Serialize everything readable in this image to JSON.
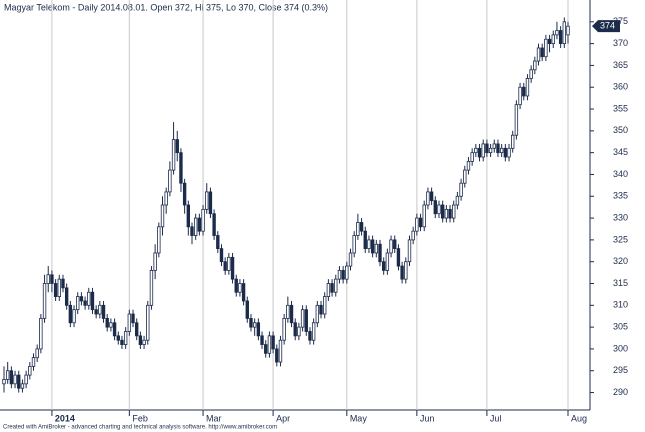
{
  "chart_data": {
    "type": "candlestick",
    "title": "Magyar Telekom - Daily 2014.08.01. Open 372, Hi 375, Lo 370, Close 374 (0.3%)",
    "footer": "Created with AmiBroker - advanced charting and technical analysis software. http://www.amibroker.com",
    "up_color": "#ffffff",
    "down_color": "#1c2b4a",
    "outline_color": "#1c2b4a",
    "ylim": [
      286,
      380
    ],
    "yticks": [
      290,
      295,
      300,
      305,
      310,
      315,
      320,
      325,
      330,
      335,
      340,
      345,
      350,
      355,
      360,
      365,
      370,
      375
    ],
    "xticks": [
      {
        "value": 13,
        "label": "2014"
      },
      {
        "value": 34,
        "label": "Feb"
      },
      {
        "value": 54,
        "label": "Mar"
      },
      {
        "value": 73,
        "label": "Apr"
      },
      {
        "value": 93,
        "label": "May"
      },
      {
        "value": 112,
        "label": "Jun"
      },
      {
        "value": 131,
        "label": "Jul"
      },
      {
        "value": 153,
        "label": "Aug"
      }
    ],
    "grid": true,
    "ohlc": [
      [
        292,
        296,
        290,
        293
      ],
      [
        293,
        297,
        292,
        295
      ],
      [
        295,
        296,
        291,
        292
      ],
      [
        292,
        295,
        291,
        294
      ],
      [
        294,
        295,
        290,
        291
      ],
      [
        291,
        293,
        290,
        292
      ],
      [
        292,
        295,
        291,
        294
      ],
      [
        294,
        297,
        293,
        296
      ],
      [
        296,
        299,
        295,
        298
      ],
      [
        298,
        301,
        297,
        300
      ],
      [
        300,
        308,
        299,
        307
      ],
      [
        307,
        317,
        306,
        315
      ],
      [
        315,
        319,
        313,
        317
      ],
      [
        317,
        318,
        313,
        315
      ],
      [
        315,
        316,
        311,
        312
      ],
      [
        312,
        317,
        311,
        316
      ],
      [
        316,
        317,
        313,
        314
      ],
      [
        314,
        315,
        309,
        310
      ],
      [
        310,
        311,
        305,
        306
      ],
      [
        306,
        310,
        305,
        309
      ],
      [
        309,
        313,
        308,
        312
      ],
      [
        312,
        313,
        310,
        311
      ],
      [
        311,
        312,
        309,
        310
      ],
      [
        310,
        314,
        309,
        313
      ],
      [
        313,
        314,
        308,
        309
      ],
      [
        309,
        310,
        307,
        308
      ],
      [
        308,
        311,
        307,
        310
      ],
      [
        310,
        311,
        306,
        307
      ],
      [
        307,
        308,
        304,
        305
      ],
      [
        305,
        307,
        304,
        306
      ],
      [
        306,
        307,
        302,
        303
      ],
      [
        303,
        304,
        301,
        302
      ],
      [
        302,
        303,
        300,
        301
      ],
      [
        301,
        305,
        300,
        304
      ],
      [
        304,
        309,
        303,
        308
      ],
      [
        308,
        309,
        305,
        306
      ],
      [
        306,
        307,
        302,
        303
      ],
      [
        303,
        304,
        300,
        301
      ],
      [
        301,
        303,
        300,
        302
      ],
      [
        302,
        311,
        301,
        310
      ],
      [
        310,
        319,
        309,
        318
      ],
      [
        318,
        324,
        316,
        322
      ],
      [
        322,
        329,
        321,
        328
      ],
      [
        328,
        335,
        326,
        333
      ],
      [
        333,
        337,
        331,
        336
      ],
      [
        336,
        343,
        335,
        341
      ],
      [
        341,
        352,
        340,
        348
      ],
      [
        348,
        350,
        343,
        345
      ],
      [
        345,
        346,
        336,
        338
      ],
      [
        338,
        339,
        331,
        333
      ],
      [
        333,
        334,
        326,
        328
      ],
      [
        328,
        329,
        324,
        326
      ],
      [
        326,
        331,
        325,
        330
      ],
      [
        330,
        331,
        326,
        327
      ],
      [
        327,
        333,
        326,
        332
      ],
      [
        332,
        338,
        331,
        336
      ],
      [
        336,
        337,
        330,
        331
      ],
      [
        331,
        332,
        325,
        326
      ],
      [
        326,
        327,
        322,
        323
      ],
      [
        323,
        324,
        319,
        320
      ],
      [
        320,
        321,
        317,
        318
      ],
      [
        318,
        322,
        317,
        321
      ],
      [
        321,
        322,
        315,
        316
      ],
      [
        316,
        317,
        312,
        313
      ],
      [
        313,
        316,
        312,
        315
      ],
      [
        315,
        316,
        310,
        311
      ],
      [
        311,
        312,
        306,
        307
      ],
      [
        307,
        308,
        304,
        305
      ],
      [
        305,
        307,
        303,
        306
      ],
      [
        306,
        307,
        302,
        303
      ],
      [
        303,
        304,
        300,
        301
      ],
      [
        301,
        302,
        298,
        299
      ],
      [
        299,
        304,
        298,
        303
      ],
      [
        303,
        304,
        299,
        300
      ],
      [
        300,
        301,
        296,
        297
      ],
      [
        297,
        303,
        296,
        302
      ],
      [
        302,
        308,
        301,
        307
      ],
      [
        307,
        312,
        306,
        310
      ],
      [
        310,
        311,
        305,
        306
      ],
      [
        306,
        307,
        302,
        303
      ],
      [
        303,
        306,
        302,
        305
      ],
      [
        305,
        310,
        304,
        309
      ],
      [
        309,
        310,
        303,
        304
      ],
      [
        304,
        305,
        301,
        302
      ],
      [
        302,
        307,
        301,
        306
      ],
      [
        306,
        311,
        305,
        310
      ],
      [
        310,
        311,
        307,
        308
      ],
      [
        308,
        313,
        307,
        312
      ],
      [
        312,
        316,
        311,
        315
      ],
      [
        315,
        316,
        312,
        313
      ],
      [
        313,
        317,
        312,
        316
      ],
      [
        316,
        319,
        315,
        318
      ],
      [
        318,
        319,
        315,
        316
      ],
      [
        316,
        320,
        315,
        319
      ],
      [
        319,
        323,
        318,
        322
      ],
      [
        322,
        327,
        321,
        326
      ],
      [
        326,
        331,
        325,
        329
      ],
      [
        329,
        330,
        326,
        327
      ],
      [
        327,
        328,
        322,
        323
      ],
      [
        323,
        326,
        322,
        325
      ],
      [
        325,
        326,
        321,
        322
      ],
      [
        322,
        325,
        321,
        324
      ],
      [
        324,
        325,
        319,
        320
      ],
      [
        320,
        321,
        317,
        318
      ],
      [
        318,
        323,
        317,
        322
      ],
      [
        322,
        326,
        321,
        325
      ],
      [
        325,
        326,
        322,
        323
      ],
      [
        323,
        324,
        318,
        319
      ],
      [
        319,
        320,
        315,
        316
      ],
      [
        316,
        321,
        315,
        320
      ],
      [
        320,
        326,
        319,
        325
      ],
      [
        325,
        328,
        324,
        327
      ],
      [
        327,
        331,
        326,
        330
      ],
      [
        330,
        331,
        327,
        328
      ],
      [
        328,
        334,
        327,
        333
      ],
      [
        333,
        337,
        332,
        336
      ],
      [
        336,
        337,
        333,
        334
      ],
      [
        334,
        335,
        330,
        331
      ],
      [
        331,
        334,
        330,
        333
      ],
      [
        333,
        334,
        329,
        330
      ],
      [
        330,
        333,
        329,
        332
      ],
      [
        332,
        333,
        329,
        330
      ],
      [
        330,
        334,
        329,
        333
      ],
      [
        333,
        336,
        332,
        335
      ],
      [
        335,
        339,
        334,
        338
      ],
      [
        338,
        342,
        337,
        341
      ],
      [
        341,
        344,
        340,
        343
      ],
      [
        343,
        346,
        342,
        345
      ],
      [
        345,
        347,
        344,
        346
      ],
      [
        346,
        347,
        343,
        344
      ],
      [
        344,
        348,
        343,
        347
      ],
      [
        347,
        348,
        344,
        345
      ],
      [
        345,
        347,
        344,
        346
      ],
      [
        346,
        348,
        345,
        347
      ],
      [
        347,
        348,
        344,
        345
      ],
      [
        345,
        347,
        344,
        346
      ],
      [
        346,
        347,
        343,
        344
      ],
      [
        344,
        347,
        343,
        346
      ],
      [
        346,
        350,
        345,
        349
      ],
      [
        349,
        357,
        348,
        356
      ],
      [
        356,
        361,
        355,
        360
      ],
      [
        360,
        361,
        357,
        358
      ],
      [
        358,
        363,
        357,
        362
      ],
      [
        362,
        365,
        361,
        364
      ],
      [
        364,
        367,
        363,
        366
      ],
      [
        366,
        370,
        365,
        369
      ],
      [
        369,
        370,
        366,
        367
      ],
      [
        367,
        372,
        366,
        371
      ],
      [
        371,
        372,
        368,
        370
      ],
      [
        370,
        373,
        369,
        372
      ],
      [
        372,
        375,
        371,
        373
      ],
      [
        373,
        374,
        369,
        370
      ],
      [
        370,
        376,
        369,
        375
      ],
      [
        372,
        375,
        370,
        374
      ]
    ]
  }
}
